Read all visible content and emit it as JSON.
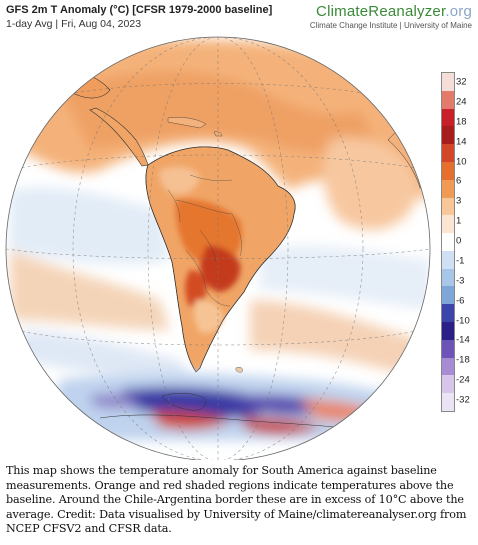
{
  "header": {
    "title": "GFS 2m T Anomaly (°C) [CFSR 1979-2000 baseline]",
    "subtitle": "1-day Avg | Fri, Aug 04, 2023"
  },
  "brand": {
    "name_main": "ClimateReanalyzer",
    "name_tld": ".org",
    "institution": "Climate Change Institute | University of Maine"
  },
  "legend": {
    "labels": [
      "32",
      "24",
      "18",
      "14",
      "10",
      "6",
      "3",
      "1",
      "0",
      "-1",
      "-3",
      "-6",
      "-10",
      "-14",
      "-18",
      "-24",
      "-32"
    ],
    "colors": [
      "#f6ded8",
      "#e47a6a",
      "#c8202a",
      "#a81c1c",
      "#d2462a",
      "#e56f2e",
      "#f09a55",
      "#f7c699",
      "#fbe6d3",
      "#ffffff",
      "#cfe0f2",
      "#a7c6e8",
      "#7fa6d8",
      "#3b44a8",
      "#2a1f86",
      "#6c53b8",
      "#a68cd2",
      "#d5c6ea",
      "#ece4f4"
    ]
  },
  "caption": "This map shows the temperature anomaly for South America against baseline measurements. Orange and red shaded regions indicate temperatures above the baseline. Around the Chile-Argentina border these are in excess of 10°C above the average. Credit: Data visualised by University of Maine/climatereanalyser.org from NCEP CFSV2 and CFSR data."
}
